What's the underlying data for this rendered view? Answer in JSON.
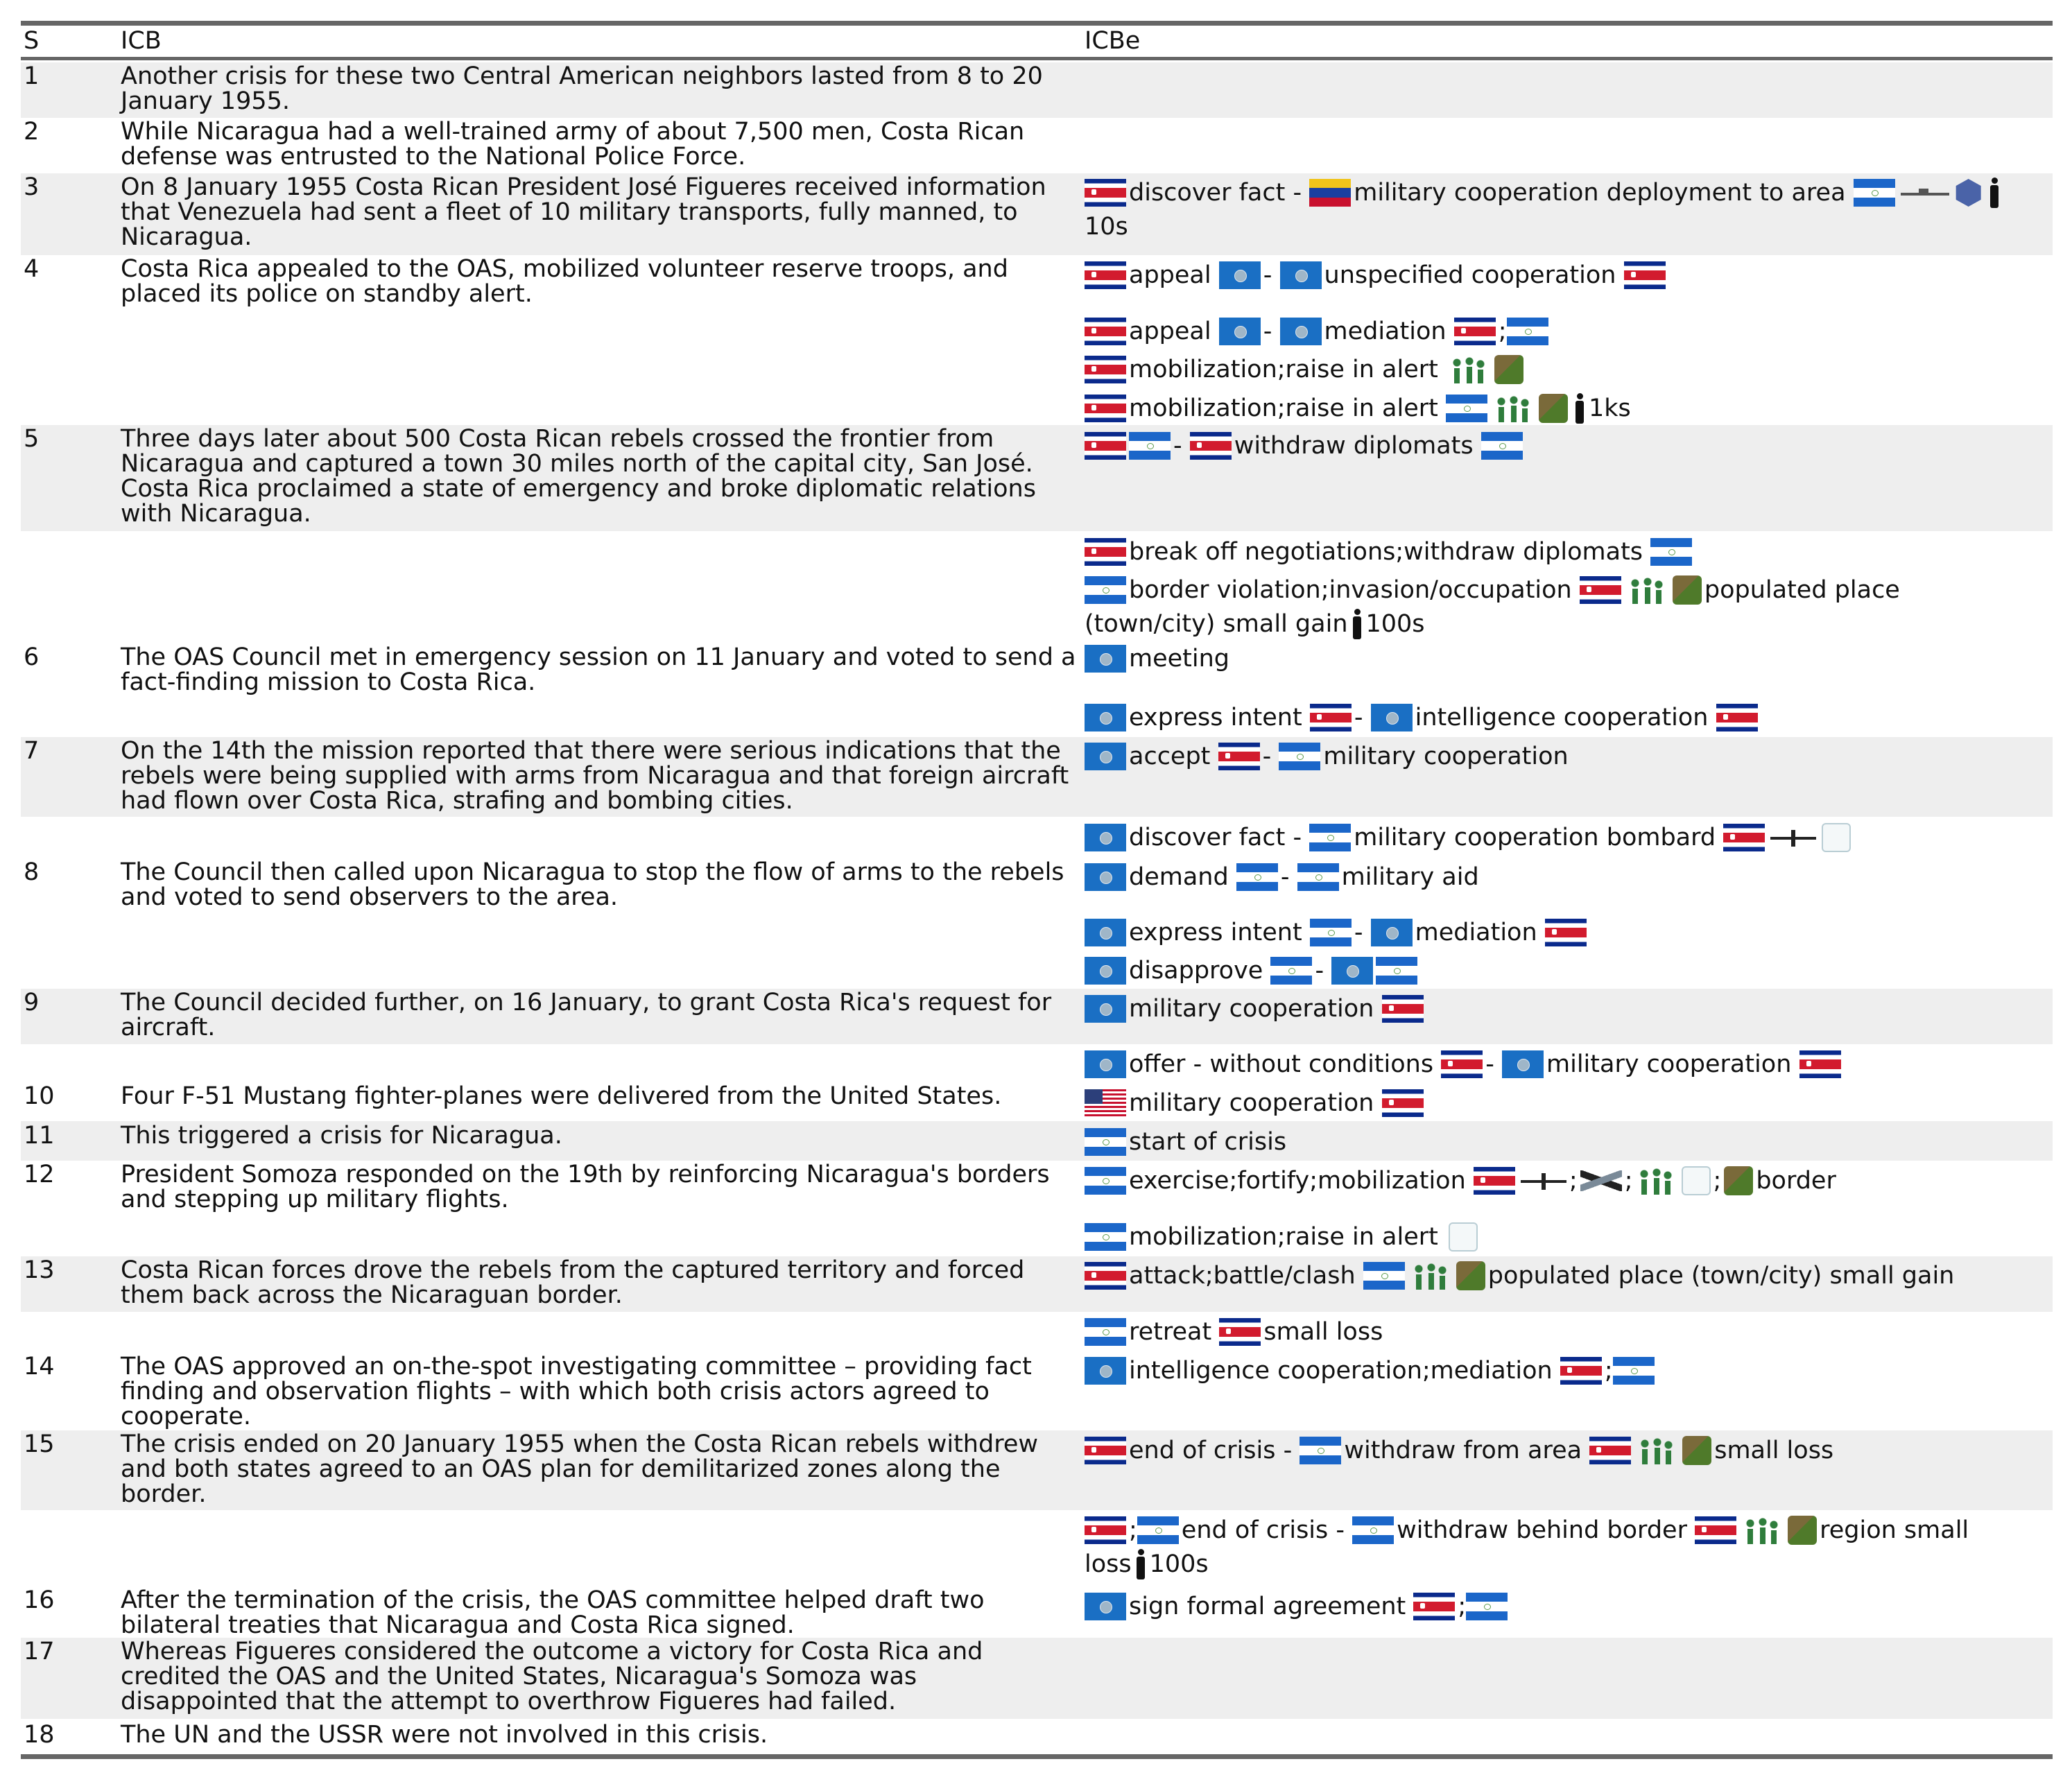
{
  "headers": {
    "s": "S",
    "icb": "ICB",
    "icbe": "ICBe"
  },
  "colors": {
    "band": "#eeeeee",
    "rule": "#666666"
  },
  "rows": [
    {
      "s": "1",
      "icb": "Another crisis for these two Central American neighbors lasted from 8 to 20 January 1955."
    },
    {
      "s": "2",
      "icb": "While Nicaragua had a well-trained army of about 7,500 men, Costa Rican defense was entrusted to the National Police Force."
    },
    {
      "s": "3",
      "icb": "On 8 January 1955 Costa Rican President José Figueres received information that Venezuela had sent a fleet of 10 military transports, fully manned, to Nicaragua."
    },
    {
      "s": "4",
      "icb": "Costa Rica appealed to the OAS, mobilized volunteer reserve troops, and placed its police on standby alert."
    },
    {
      "s": "5",
      "icb": "Three days later about 500 Costa Rican rebels crossed the frontier from Nicaragua and captured a town 30 miles north of the capital city, San José. Costa Rica proclaimed a state of emergency and broke diplomatic relations with Nicaragua."
    },
    {
      "s": "6",
      "icb": "The OAS Council met in emergency session on 11 January and voted to send a fact-finding mission to Costa Rica."
    },
    {
      "s": "7",
      "icb": "On the 14th the mission reported that there were serious indications that the rebels were being supplied with arms from Nicaragua and that foreign aircraft had flown over Costa Rica, strafing and bombing cities."
    },
    {
      "s": "8",
      "icb": "The Council then called upon Nicaragua to stop the flow of arms to the rebels and voted to send observers to the area."
    },
    {
      "s": "9",
      "icb": "The Council decided further, on 16 January, to grant Costa Rica's request for aircraft."
    },
    {
      "s": "10",
      "icb": "Four F-51 Mustang fighter-planes were delivered from the United States."
    },
    {
      "s": "11",
      "icb": "This triggered a crisis for Nicaragua."
    },
    {
      "s": "12",
      "icb": "President Somoza responded on the 19th by reinforcing Nicaragua's borders and stepping up military flights."
    },
    {
      "s": "13",
      "icb": "Costa Rican forces drove the rebels from the captured territory and forced them back across the Nicaraguan border."
    },
    {
      "s": "14",
      "icb": "The OAS approved an on-the-spot investigating committee – providing fact finding and observation flights – with which both crisis actors agreed to cooperate."
    },
    {
      "s": "15",
      "icb": "The crisis ended on 20 January 1955 when the Costa Rican rebels withdrew and both states agreed to an OAS plan for demilitarized zones along the border."
    },
    {
      "s": "16",
      "icb": "After the termination of the crisis, the OAS committee helped draft two bilateral treaties that Nicaragua and Costa Rica signed."
    },
    {
      "s": "17",
      "icb": "Whereas Figueres considered the outcome a victory for Costa Rica and credited the OAS and the United States, Nicaragua's Somoza was disappointed that the attempt to overthrow Figueres had failed."
    },
    {
      "s": "18",
      "icb": "The UN and the USSR were not involved in this crisis."
    }
  ],
  "events": {
    "e1": {
      "t1": "discover fact -",
      "t2": "military cooperation deployment to area",
      "t3": "10s"
    },
    "e2": {
      "t1": "appeal",
      "t2": "-",
      "t3": "unspecified cooperation"
    },
    "e3": {
      "t1": "appeal",
      "t2": "-",
      "t3": "mediation",
      "t4": ";"
    },
    "e4": {
      "t1": "mobilization;raise in alert"
    },
    "e5": {
      "t1": "mobilization;raise in alert",
      "t2": "1ks"
    },
    "e6": {
      "t1": "-",
      "t2": "withdraw diplomats"
    },
    "e7": {
      "t1": "break off negotiations;withdraw diplomats"
    },
    "e8": {
      "t1": "border violation;invasion/occupation",
      "t2": "populated place",
      "t3": "(town/city) small gain",
      "t4": "100s"
    },
    "e9": {
      "t1": "meeting"
    },
    "e10": {
      "t1": "express intent",
      "t2": "-",
      "t3": "intelligence cooperation"
    },
    "e11": {
      "t1": "accept",
      "t2": "-",
      "t3": "military cooperation"
    },
    "e12": {
      "t1": "discover fact -",
      "t2": "military cooperation bombard"
    },
    "e13": {
      "t1": "demand",
      "t2": "-",
      "t3": "military aid"
    },
    "e14": {
      "t1": "express intent",
      "t2": "-",
      "t3": "mediation"
    },
    "e15": {
      "t1": "disapprove",
      "t2": "-"
    },
    "e16": {
      "t1": "military cooperation"
    },
    "e17": {
      "t1": "offer - without conditions",
      "t2": "-",
      "t3": "military cooperation"
    },
    "e18": {
      "t1": "military cooperation"
    },
    "e19": {
      "t1": "start of crisis"
    },
    "e20": {
      "t1": "exercise;fortify;mobilization",
      "t2": ";",
      "t3": ";",
      "t4": ";",
      "t5": "border"
    },
    "e21": {
      "t1": "mobilization;raise in alert"
    },
    "e22": {
      "t1": "attack;battle/clash",
      "t2": "populated place (town/city) small gain"
    },
    "e23": {
      "t1": "retreat",
      "t2": "small loss"
    },
    "e24": {
      "t1": "intelligence cooperation;mediation",
      "t2": ";"
    },
    "e25": {
      "t1": "end of crisis -",
      "t2": "withdraw from area",
      "t3": "small loss"
    },
    "e26": {
      "t1": ";",
      "t2": "end of crisis -",
      "t3": "withdraw behind border",
      "t4": "region small",
      "t5": "loss",
      "t6": "100s"
    },
    "e27": {
      "t1": "sign formal agreement",
      "t2": ";"
    }
  }
}
